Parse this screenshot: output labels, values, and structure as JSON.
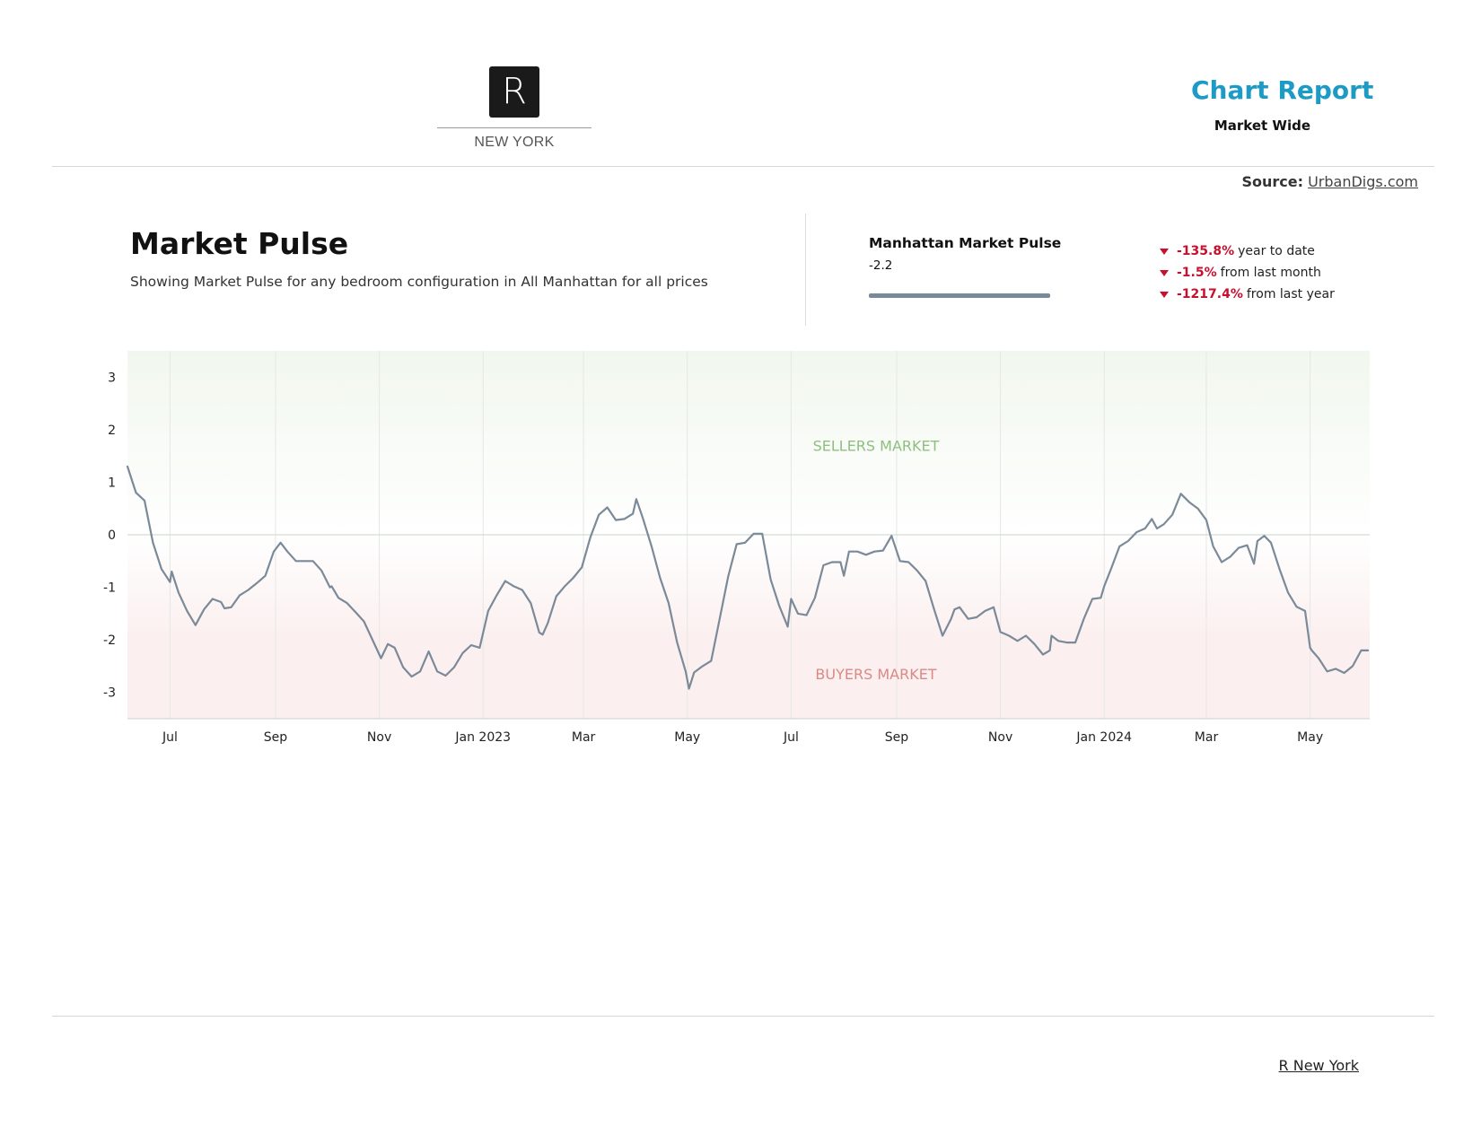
{
  "header": {
    "logo_letter": "R",
    "logo_text": "NEW YORK",
    "report_title": "Chart Report",
    "report_subtitle": "Market Wide",
    "source_label": "Source:",
    "source_link": "UrbanDigs.com"
  },
  "summary": {
    "title": "Market Pulse",
    "description": "Showing Market Pulse for any bedroom configuration in All Manhattan for all prices",
    "metric_label": "Manhattan Market Pulse",
    "metric_value": "-2.2",
    "changes": [
      {
        "pct": "-135.8%",
        "text": "year to date"
      },
      {
        "pct": "-1.5%",
        "text": "from last month"
      },
      {
        "pct": "-1217.4%",
        "text": "from last year"
      }
    ]
  },
  "colors": {
    "line": "#7b8a99",
    "sellers_zone": "#f1f7ee",
    "buyers_zone": "#fbf0ef",
    "sellers_text": "#8fbf7f",
    "buyers_text": "#d98a86",
    "down": "#c8102e",
    "accent": "#1d9bc4"
  },
  "chart_data": {
    "type": "line",
    "title": "",
    "xlabel": "",
    "ylabel": "",
    "ylim": [
      -3.5,
      3.5
    ],
    "yticks": [
      3,
      2,
      1,
      0,
      -1,
      -2,
      -3
    ],
    "grid": true,
    "legend": "none",
    "annotations": [
      "SELLERS MARKET",
      "BUYERS MARKET"
    ],
    "x_ticks": [
      {
        "label": "Jul",
        "x": "2022-07-01"
      },
      {
        "label": "Sep",
        "x": "2022-09-01"
      },
      {
        "label": "Nov",
        "x": "2022-11-01"
      },
      {
        "label": "Jan 2023",
        "x": "2023-01-01"
      },
      {
        "label": "Mar",
        "x": "2023-03-01"
      },
      {
        "label": "May",
        "x": "2023-05-01"
      },
      {
        "label": "Jul",
        "x": "2023-07-01"
      },
      {
        "label": "Sep",
        "x": "2023-09-01"
      },
      {
        "label": "Nov",
        "x": "2023-11-01"
      },
      {
        "label": "Jan 2024",
        "x": "2024-01-01"
      },
      {
        "label": "Mar",
        "x": "2024-03-01"
      },
      {
        "label": "May",
        "x": "2024-05-01"
      }
    ],
    "xlim": [
      "2022-06-06",
      "2024-06-05"
    ],
    "series": [
      {
        "x": [
          "2022-06-06",
          "2022-06-11",
          "2022-06-16",
          "2022-06-21",
          "2022-06-26",
          "2022-07-01",
          "2022-07-02",
          "2022-07-06",
          "2022-07-11",
          "2022-07-16",
          "2022-07-21",
          "2022-07-26",
          "2022-07-31",
          "2022-08-02",
          "2022-08-06",
          "2022-08-11",
          "2022-08-16",
          "2022-08-21",
          "2022-08-26",
          "2022-08-31",
          "2022-09-04",
          "2022-09-08",
          "2022-09-13",
          "2022-09-18",
          "2022-09-23",
          "2022-09-28",
          "2022-10-03",
          "2022-10-04",
          "2022-10-08",
          "2022-10-13",
          "2022-10-18",
          "2022-10-23",
          "2022-10-28",
          "2022-11-02",
          "2022-11-06",
          "2022-11-10",
          "2022-11-15",
          "2022-11-20",
          "2022-11-25",
          "2022-11-30",
          "2022-12-05",
          "2022-12-10",
          "2022-12-15",
          "2022-12-20",
          "2022-12-25",
          "2022-12-30",
          "2023-01-04",
          "2023-01-09",
          "2023-01-14",
          "2023-01-19",
          "2023-01-24",
          "2023-01-29",
          "2023-02-03",
          "2023-02-05",
          "2023-02-08",
          "2023-02-13",
          "2023-02-18",
          "2023-02-23",
          "2023-02-28",
          "2023-03-05",
          "2023-03-10",
          "2023-03-15",
          "2023-03-20",
          "2023-03-25",
          "2023-03-30",
          "2023-04-01",
          "2023-04-05",
          "2023-04-10",
          "2023-04-15",
          "2023-04-20",
          "2023-04-25",
          "2023-04-30",
          "2023-05-02",
          "2023-05-05",
          "2023-05-10",
          "2023-05-15",
          "2023-05-20",
          "2023-05-25",
          "2023-05-30",
          "2023-06-04",
          "2023-06-09",
          "2023-06-14",
          "2023-06-19",
          "2023-06-24",
          "2023-06-29",
          "2023-07-01",
          "2023-07-05",
          "2023-07-10",
          "2023-07-15",
          "2023-07-20",
          "2023-07-25",
          "2023-07-30",
          "2023-08-01",
          "2023-08-04",
          "2023-08-09",
          "2023-08-14",
          "2023-08-19",
          "2023-08-24",
          "2023-08-29",
          "2023-09-03",
          "2023-09-08",
          "2023-09-13",
          "2023-09-18",
          "2023-09-23",
          "2023-09-28",
          "2023-10-03",
          "2023-10-05",
          "2023-10-08",
          "2023-10-13",
          "2023-10-18",
          "2023-10-23",
          "2023-10-28",
          "2023-11-01",
          "2023-11-06",
          "2023-11-11",
          "2023-11-16",
          "2023-11-21",
          "2023-11-26",
          "2023-11-30",
          "2023-12-01",
          "2023-12-05",
          "2023-12-10",
          "2023-12-15",
          "2023-12-20",
          "2023-12-25",
          "2023-12-30",
          "2024-01-01",
          "2024-01-05",
          "2024-01-10",
          "2024-01-15",
          "2024-01-20",
          "2024-01-25",
          "2024-01-29",
          "2024-02-01",
          "2024-02-05",
          "2024-02-10",
          "2024-02-15",
          "2024-02-20",
          "2024-02-25",
          "2024-03-01",
          "2024-03-05",
          "2024-03-10",
          "2024-03-15",
          "2024-03-20",
          "2024-03-25",
          "2024-03-29",
          "2024-03-31",
          "2024-04-04",
          "2024-04-08",
          "2024-04-13",
          "2024-04-18",
          "2024-04-23",
          "2024-04-28",
          "2024-05-01",
          "2024-05-02",
          "2024-05-06",
          "2024-05-11",
          "2024-05-16",
          "2024-05-21",
          "2024-05-26",
          "2024-05-31",
          "2024-06-04"
        ],
        "y": [
          1.3,
          0.8,
          0.65,
          -0.15,
          -0.65,
          -0.9,
          -0.7,
          -1.1,
          -1.45,
          -1.72,
          -1.42,
          -1.22,
          -1.28,
          -1.4,
          -1.38,
          -1.15,
          -1.05,
          -0.92,
          -0.78,
          -0.32,
          -0.15,
          -0.32,
          -0.5,
          -0.5,
          -0.5,
          -0.68,
          -1.0,
          -0.98,
          -1.2,
          -1.3,
          -1.47,
          -1.65,
          -2.0,
          -2.35,
          -2.08,
          -2.15,
          -2.52,
          -2.7,
          -2.6,
          -2.22,
          -2.6,
          -2.68,
          -2.52,
          -2.25,
          -2.1,
          -2.15,
          -1.45,
          -1.15,
          -0.88,
          -0.98,
          -1.05,
          -1.3,
          -1.86,
          -1.9,
          -1.68,
          -1.17,
          -0.98,
          -0.82,
          -0.62,
          -0.05,
          0.38,
          0.52,
          0.28,
          0.3,
          0.4,
          0.68,
          0.3,
          -0.22,
          -0.82,
          -1.3,
          -2.05,
          -2.6,
          -2.93,
          -2.62,
          -2.5,
          -2.4,
          -1.6,
          -0.8,
          -0.18,
          -0.15,
          0.02,
          0.02,
          -0.85,
          -1.35,
          -1.75,
          -1.22,
          -1.5,
          -1.53,
          -1.2,
          -0.58,
          -0.52,
          -0.52,
          -0.78,
          -0.32,
          -0.32,
          -0.38,
          -0.32,
          -0.3,
          -0.02,
          -0.5,
          -0.52,
          -0.68,
          -0.88,
          -1.42,
          -1.92,
          -1.6,
          -1.42,
          -1.38,
          -1.6,
          -1.57,
          -1.45,
          -1.38,
          -1.85,
          -1.92,
          -2.02,
          -1.92,
          -2.08,
          -2.28,
          -2.2,
          -1.92,
          -2.02,
          -2.05,
          -2.05,
          -1.6,
          -1.22,
          -1.2,
          -0.98,
          -0.65,
          -0.22,
          -0.12,
          0.05,
          0.12,
          0.3,
          0.12,
          0.2,
          0.38,
          0.78,
          0.62,
          0.5,
          0.28,
          -0.22,
          -0.52,
          -0.42,
          -0.25,
          -0.2,
          -0.55,
          -0.12,
          -0.02,
          -0.15,
          -0.65,
          -1.1,
          -1.37,
          -1.45,
          -2.15,
          -2.2,
          -2.35,
          -2.6,
          -2.55,
          -2.63,
          -2.5,
          -2.2,
          -2.2
        ]
      }
    ]
  },
  "footer": {
    "link": "R New York"
  }
}
